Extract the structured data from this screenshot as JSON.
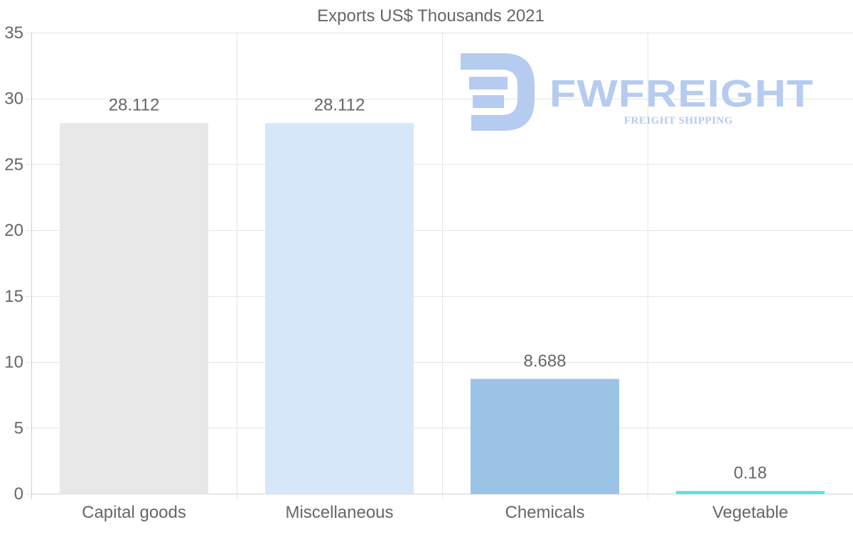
{
  "chart_data": {
    "type": "bar",
    "title": "Exports US$ Thousands 2021",
    "categories": [
      "Capital goods",
      "Miscellaneous",
      "Chemicals",
      "Vegetable"
    ],
    "values": [
      28.112,
      28.112,
      8.688,
      0.18
    ],
    "value_labels": [
      "28.112",
      "28.112",
      "8.688",
      "0.18"
    ],
    "bar_colors": [
      "#e8e8e8",
      "#d6e7f9",
      "#9bc3e6",
      "#5de0e6"
    ],
    "ylim": [
      0,
      35
    ],
    "yticks": [
      0,
      5,
      10,
      15,
      20,
      25,
      30,
      35
    ],
    "grid": true,
    "xlabel": "",
    "ylabel": ""
  },
  "watermark": {
    "brand": "FWFREIGHT",
    "tagline": "FREIGHT SHIPPING",
    "color": "#b5cbf0"
  },
  "colors": {
    "text": "#666666",
    "grid": "#e5e5e5",
    "axis": "#d0d0d0"
  }
}
